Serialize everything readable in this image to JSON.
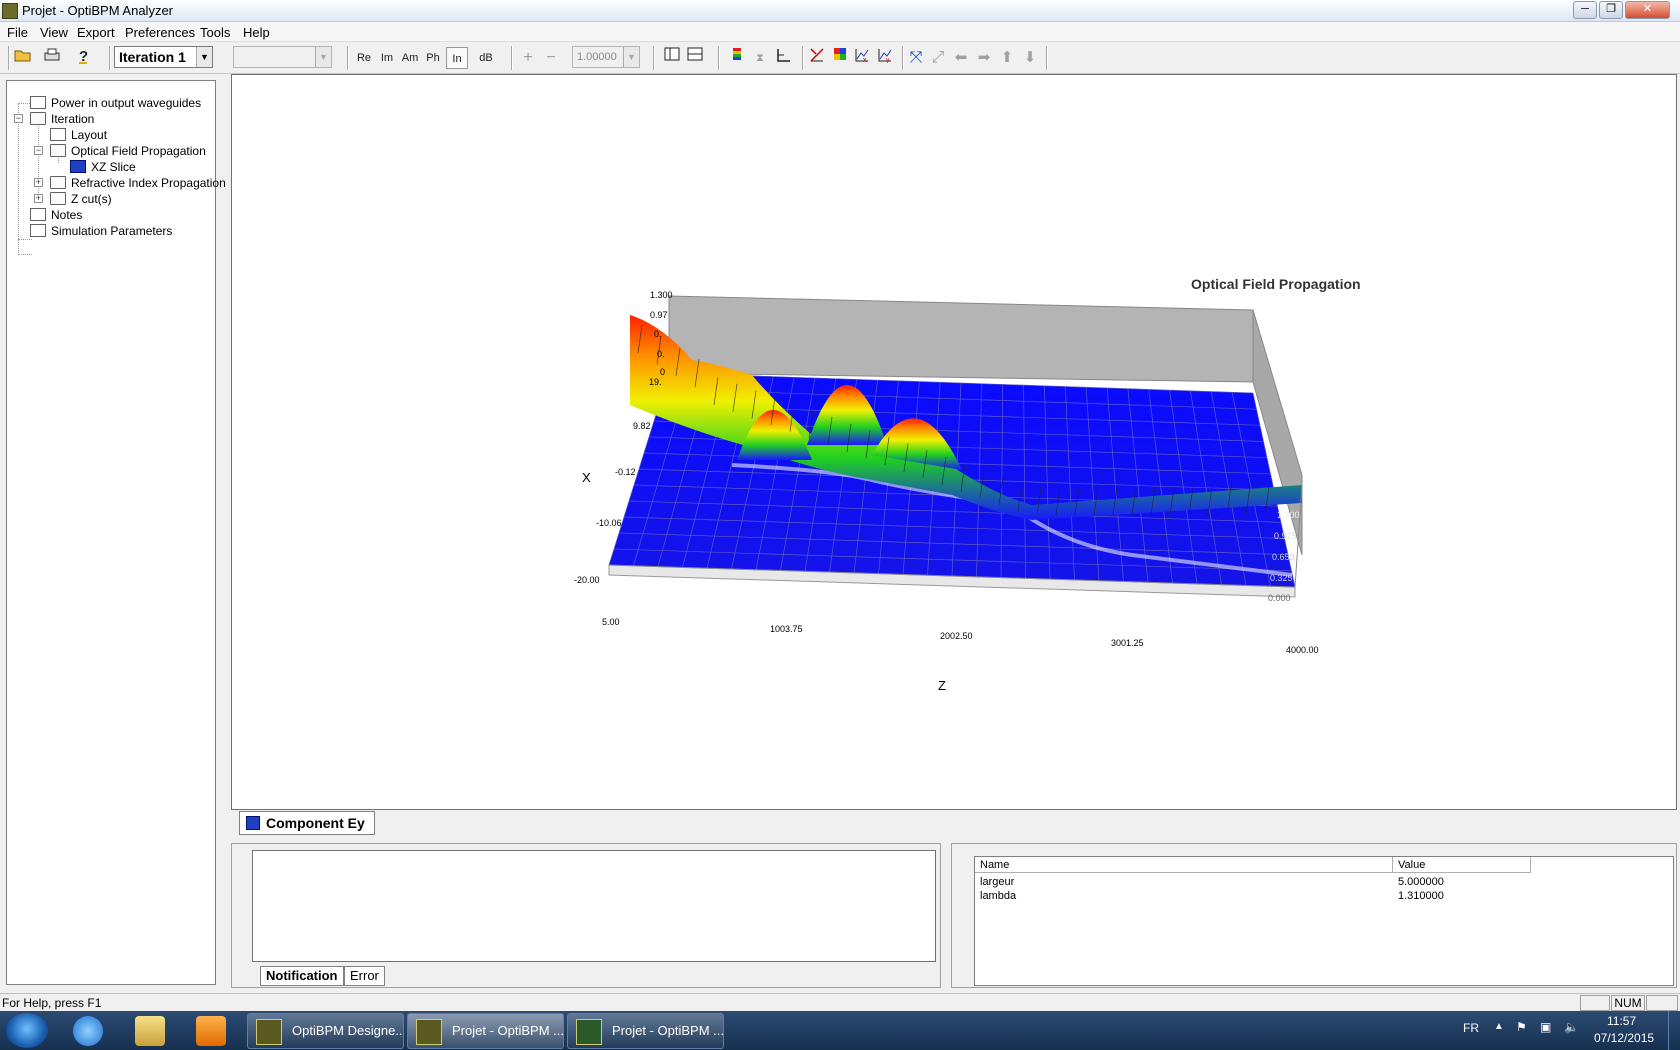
{
  "window": {
    "title": "Projet - OptiBPM Analyzer",
    "controls": [
      "─",
      "❐",
      "✕"
    ]
  },
  "menu": [
    "File",
    "View",
    "Export",
    "Preferences",
    "Tools",
    "Help"
  ],
  "toolbar": {
    "iteration_value": "Iteration 1",
    "view_buttons": [
      "Re",
      "Im",
      "Am",
      "Ph",
      "In",
      "dB"
    ],
    "zoom_value": "1.00000",
    "icons": [
      "open-icon",
      "print-icon",
      "help-icon",
      "zoom-in-icon",
      "zoom-out-icon",
      "layout-icon",
      "split-icon",
      "color-map-icon",
      "axis-icon",
      "crosshair-icon",
      "cut-icon",
      "palette-icon",
      "graph-x-icon",
      "graph-y-icon",
      "fit-icon",
      "fullscreen-icon",
      "left-icon",
      "right-icon",
      "up-icon",
      "down-icon"
    ]
  },
  "tree": {
    "items": [
      {
        "label": "Power in output waveguides"
      },
      {
        "label": "Iteration"
      },
      {
        "label": "Layout"
      },
      {
        "label": "Optical Field Propagation"
      },
      {
        "label": "XZ Slice"
      },
      {
        "label": "Refractive Index Propagation"
      },
      {
        "label": "Z cut(s)"
      },
      {
        "label": "Notes"
      },
      {
        "label": "Simulation Parameters"
      }
    ]
  },
  "chart": {
    "title": "Optical Field Propagation",
    "xlabel": "X",
    "zlabel": "Z",
    "x_ticks": [
      "1.300",
      "0.97",
      "0.",
      "0.",
      "0",
      "19.",
      "9.82",
      "-0.12",
      "-10.06",
      "-20.00"
    ],
    "z_ticks": [
      "5.00",
      "1003.75",
      "2002.50",
      "3001.25",
      "4000.00"
    ],
    "right_ticks": [
      "1.300",
      "0.975",
      "0.650",
      "0.325",
      "0.000"
    ]
  },
  "chart_data": {
    "type": "surface",
    "title": "Optical Field Propagation",
    "xlabel": "X",
    "zlabel": "Z",
    "x_range": [
      -20.0,
      19.0
    ],
    "z_range": [
      5.0,
      4000.0
    ],
    "intensity_range": [
      0.0,
      1.3
    ],
    "z_ticks": [
      5.0,
      1003.75,
      2002.5,
      3001.25,
      4000.0
    ],
    "x_ticks": [
      19.0,
      9.82,
      -0.12,
      -10.06,
      -20.0
    ],
    "intensity_ticks": [
      0.0,
      0.325,
      0.65,
      0.975,
      1.3
    ],
    "grid": true,
    "colormap": [
      "#1010ff",
      "#00d000",
      "#ffff00",
      "#ff8000",
      "#ff2000"
    ]
  },
  "tabs": {
    "component": "Component Ey"
  },
  "notifications": {
    "tabs": [
      "Notification",
      "Error"
    ]
  },
  "params": {
    "headers": [
      "Name",
      "Value"
    ],
    "rows": [
      {
        "name": "largeur",
        "value": "5.000000"
      },
      {
        "name": "lambda",
        "value": "1.310000"
      }
    ]
  },
  "status": {
    "help": "For Help, press F1",
    "num": "NUM"
  },
  "taskbar": {
    "buttons": [
      "OptiBPM Designe...",
      "Projet - OptiBPM ...",
      "Projet - OptiBPM ..."
    ],
    "lang": "FR",
    "time": "11:57",
    "date": "07/12/2015"
  }
}
